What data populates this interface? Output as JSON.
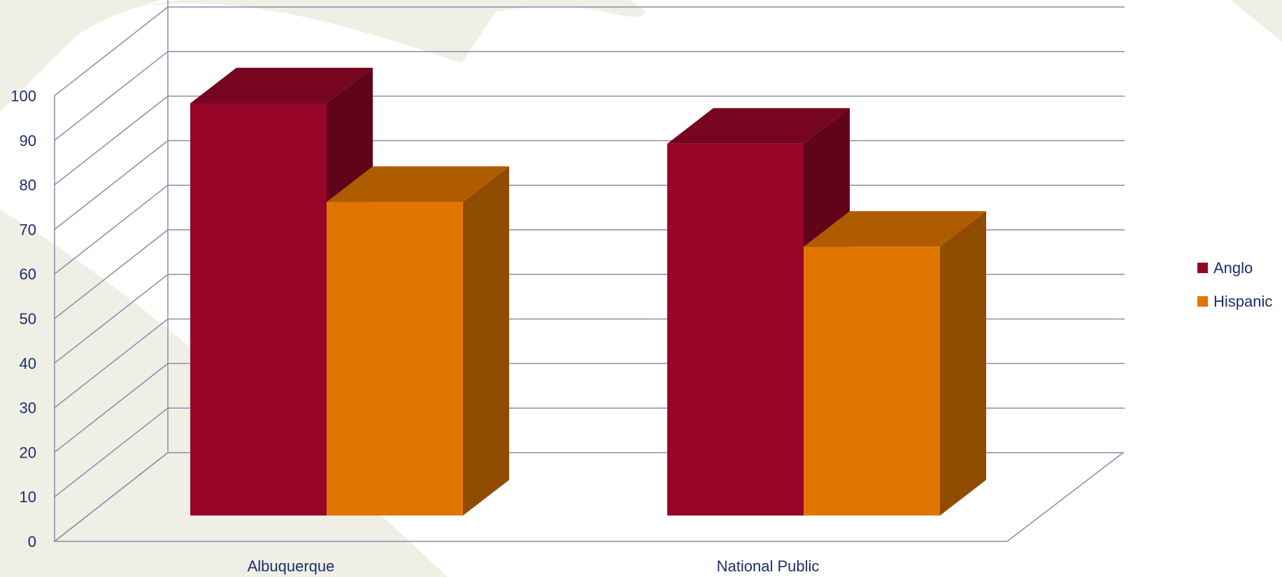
{
  "chart_data": {
    "type": "bar",
    "style": "3d-clustered-column",
    "categories": [
      "Albuquerque",
      "National Public"
    ],
    "series": [
      {
        "name": "Anglo",
        "values": [
          92,
          83
        ],
        "color": "#970628"
      },
      {
        "name": "Hispanic",
        "values": [
          70,
          60
        ],
        "color": "#e07600"
      }
    ],
    "title": "",
    "xlabel": "",
    "ylabel": "",
    "ylim": [
      0,
      100
    ],
    "yticks": [
      0,
      10,
      20,
      30,
      40,
      50,
      60,
      70,
      80,
      90,
      100
    ],
    "grid": true,
    "legend": "right"
  },
  "colors": {
    "axis_text": "#1f2d6b",
    "gridline": "#8a8caa",
    "background_decoration": "#efefe6"
  }
}
